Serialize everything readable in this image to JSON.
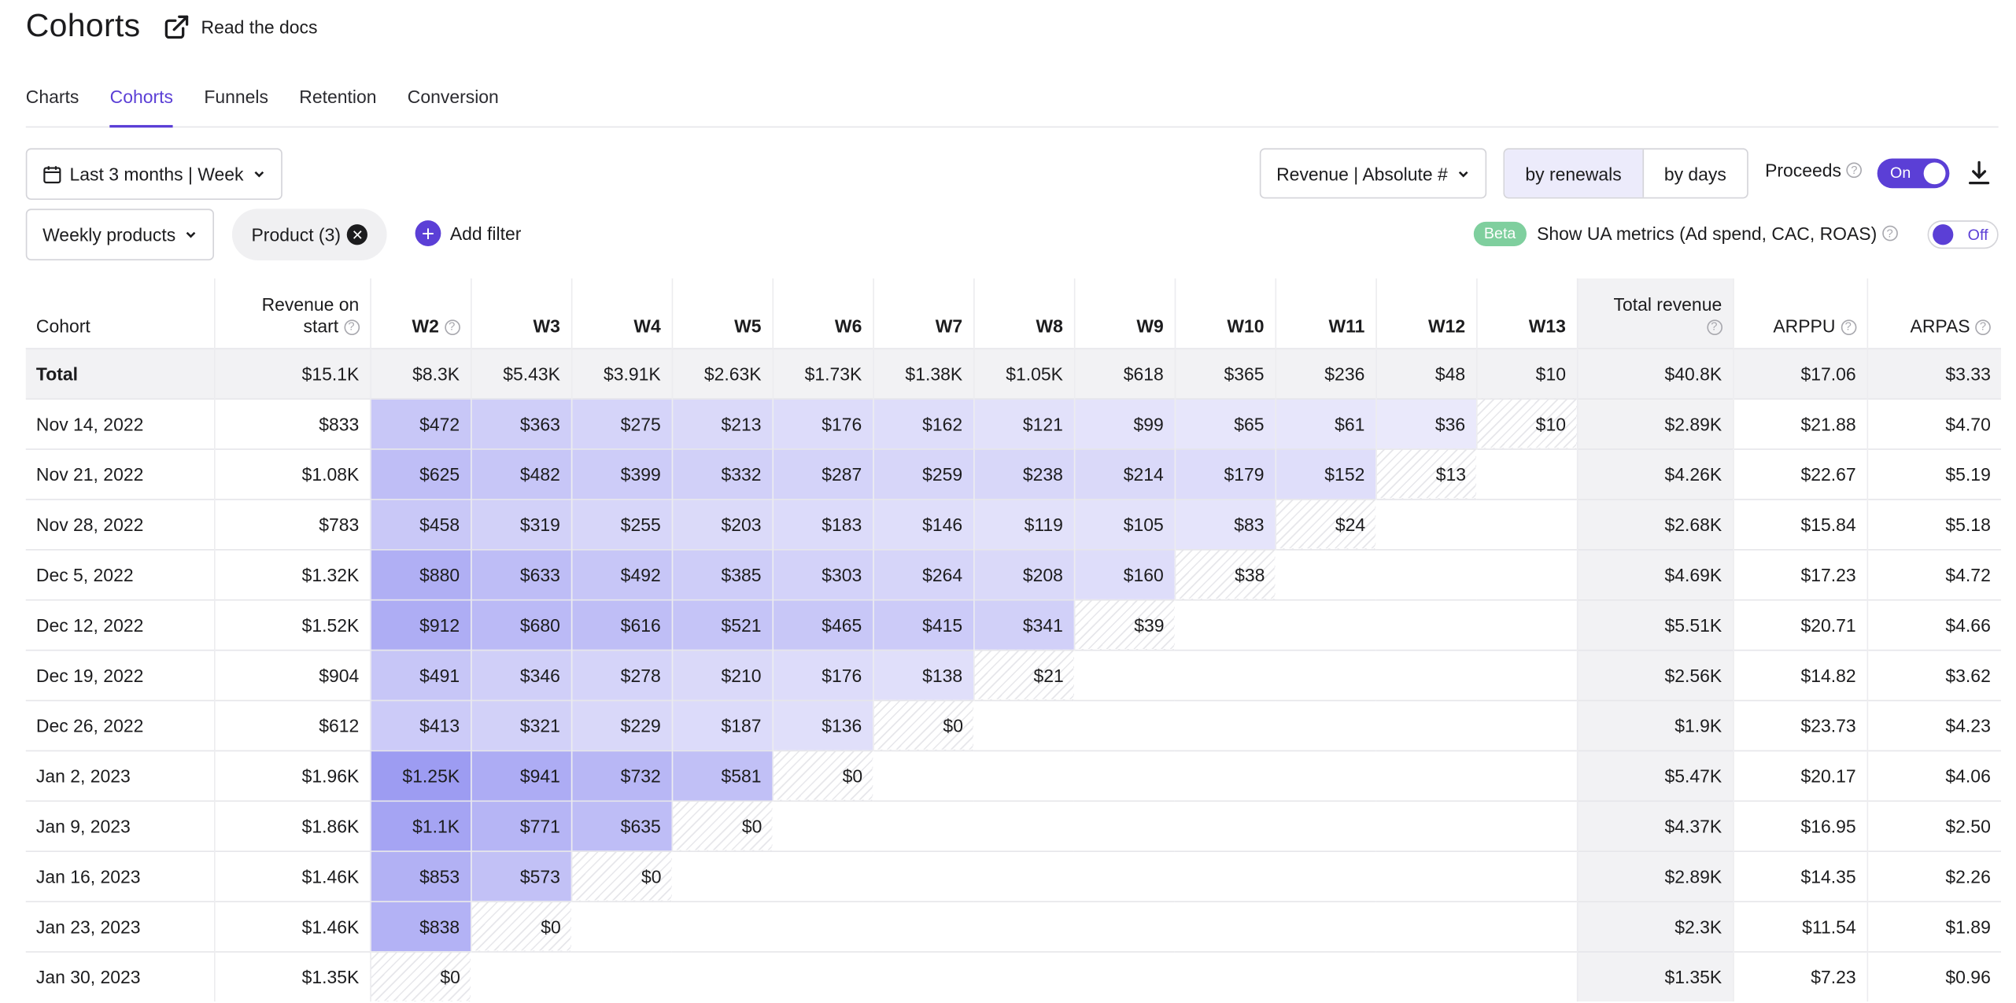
{
  "header": {
    "title": "Cohorts",
    "docs_label": "Read the docs"
  },
  "tabs": [
    "Charts",
    "Cohorts",
    "Funnels",
    "Retention",
    "Conversion"
  ],
  "active_tab": "Cohorts",
  "controls": {
    "date_range": "Last 3 months | Week",
    "metric": "Revenue | Absolute #",
    "segment_options": [
      "by renewals",
      "by days"
    ],
    "segment_selected": "by renewals",
    "proceeds_label": "Proceeds",
    "proceeds_toggle": "On",
    "products_select": "Weekly products",
    "filter_chip": "Product (3)",
    "add_filter": "Add filter",
    "beta_badge": "Beta",
    "ua_metrics_label": "Show UA metrics (Ad spend, CAC, ROAS)",
    "ua_toggle": "Off"
  },
  "table": {
    "headers": [
      "Cohort",
      "Revenue on start",
      "W2",
      "W3",
      "W4",
      "W5",
      "W6",
      "W7",
      "W8",
      "W9",
      "W10",
      "W11",
      "W12",
      "W13",
      "Total revenue",
      "ARPPU",
      "ARPAS"
    ],
    "rows": [
      [
        "Total",
        "$15.1K",
        "$8.3K",
        "$5.43K",
        "$3.91K",
        "$2.63K",
        "$1.73K",
        "$1.38K",
        "$1.05K",
        "$618",
        "$365",
        "$236",
        "$48",
        "$10",
        "$40.8K",
        "$17.06",
        "$3.33"
      ],
      [
        "Nov 14, 2022",
        "$833",
        "$472",
        "$363",
        "$275",
        "$213",
        "$176",
        "$162",
        "$121",
        "$99",
        "$65",
        "$61",
        "$36",
        "$10",
        "$2.89K",
        "$21.88",
        "$4.70"
      ],
      [
        "Nov 21, 2022",
        "$1.08K",
        "$625",
        "$482",
        "$399",
        "$332",
        "$287",
        "$259",
        "$238",
        "$214",
        "$179",
        "$152",
        "$13",
        "",
        "$4.26K",
        "$22.67",
        "$5.19"
      ],
      [
        "Nov 28, 2022",
        "$783",
        "$458",
        "$319",
        "$255",
        "$203",
        "$183",
        "$146",
        "$119",
        "$105",
        "$83",
        "$24",
        "",
        "",
        "$2.68K",
        "$15.84",
        "$5.18"
      ],
      [
        "Dec 5, 2022",
        "$1.32K",
        "$880",
        "$633",
        "$492",
        "$385",
        "$303",
        "$264",
        "$208",
        "$160",
        "$38",
        "",
        "",
        "",
        "$4.69K",
        "$17.23",
        "$4.72"
      ],
      [
        "Dec 12, 2022",
        "$1.52K",
        "$912",
        "$680",
        "$616",
        "$521",
        "$465",
        "$415",
        "$341",
        "$39",
        "",
        "",
        "",
        "",
        "$5.51K",
        "$20.71",
        "$4.66"
      ],
      [
        "Dec 19, 2022",
        "$904",
        "$491",
        "$346",
        "$278",
        "$210",
        "$176",
        "$138",
        "$21",
        "",
        "",
        "",
        "",
        "",
        "$2.56K",
        "$14.82",
        "$3.62"
      ],
      [
        "Dec 26, 2022",
        "$612",
        "$413",
        "$321",
        "$229",
        "$187",
        "$136",
        "$0",
        "",
        "",
        "",
        "",
        "",
        "",
        "$1.9K",
        "$23.73",
        "$4.23"
      ],
      [
        "Jan 2, 2023",
        "$1.96K",
        "$1.25K",
        "$941",
        "$732",
        "$581",
        "$0",
        "",
        "",
        "",
        "",
        "",
        "",
        "",
        "$5.47K",
        "$20.17",
        "$4.06"
      ],
      [
        "Jan 9, 2023",
        "$1.86K",
        "$1.1K",
        "$771",
        "$635",
        "$0",
        "",
        "",
        "",
        "",
        "",
        "",
        "",
        "",
        "$4.37K",
        "$16.95",
        "$2.50"
      ],
      [
        "Jan 16, 2023",
        "$1.46K",
        "$853",
        "$573",
        "$0",
        "",
        "",
        "",
        "",
        "",
        "",
        "",
        "",
        "",
        "$2.89K",
        "$14.35",
        "$2.26"
      ],
      [
        "Jan 23, 2023",
        "$1.46K",
        "$838",
        "$0",
        "",
        "",
        "",
        "",
        "",
        "",
        "",
        "",
        "",
        "",
        "$2.3K",
        "$11.54",
        "$1.89"
      ],
      [
        "Jan 30, 2023",
        "$1.35K",
        "$0",
        "",
        "",
        "",
        "",
        "",
        "",
        "",
        "",
        "",
        "",
        "",
        "$1.35K",
        "$7.23",
        "$0.96"
      ]
    ]
  },
  "colors": {
    "accent": "#5b3fd6",
    "heat_low": "#f0effc",
    "heat_high": "#9d9cf2",
    "summary_bg": "#f2f2f4"
  }
}
